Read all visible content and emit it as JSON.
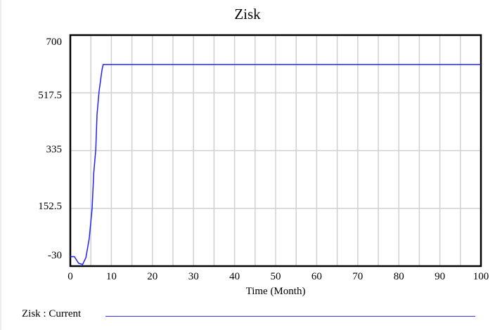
{
  "chart_data": {
    "type": "line",
    "title": "Zisk",
    "xlabel": "Time (Month)",
    "ylabel": "",
    "xlim": [
      0,
      100
    ],
    "ylim": [
      -30,
      700
    ],
    "x_ticks": [
      "0",
      "10",
      "20",
      "30",
      "40",
      "50",
      "60",
      "70",
      "80",
      "90",
      "100"
    ],
    "y_ticks": [
      "700",
      "517.5",
      "335",
      "152.5",
      "-30"
    ],
    "grid": true,
    "legend_position": "bottom",
    "series": [
      {
        "name": "Zisk : Current",
        "color": "#2020ff",
        "x": [
          0,
          1,
          2,
          3,
          3.8,
          4.6,
          5.3,
          5.7,
          6.2,
          6.5,
          7,
          7.7,
          8,
          100
        ],
        "values": [
          0,
          0,
          -21,
          -25,
          -3,
          57,
          152,
          263,
          338,
          449,
          522,
          589,
          607,
          607
        ]
      }
    ]
  },
  "legend": {
    "label": "Zisk : Current"
  },
  "colors": {
    "line": "#2020ff",
    "grid": "#d0d0d0",
    "frame": "#000000"
  }
}
